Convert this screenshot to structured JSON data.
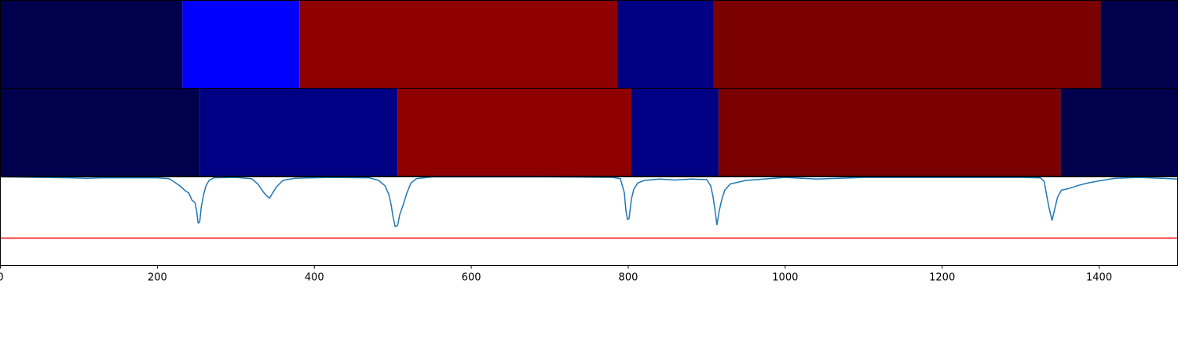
{
  "chart_data": {
    "type": "heatmap",
    "title": "",
    "xlabel": "",
    "ylabel": "",
    "xlim": [
      0,
      1500
    ],
    "grid": false,
    "legend": "none",
    "bands": [
      {
        "name": "",
        "segments": [
          {
            "x0": 0,
            "x1": 232,
            "color": "#00004d"
          },
          {
            "x0": 232,
            "x1": 381,
            "color": "#0000ff"
          },
          {
            "x0": 381,
            "x1": 786,
            "color": "#8f0000"
          },
          {
            "x0": 786,
            "x1": 909,
            "color": "#000083"
          },
          {
            "x0": 909,
            "x1": 1402,
            "color": "#7b0000"
          },
          {
            "x0": 1402,
            "x1": 1500,
            "color": "#00004d"
          }
        ]
      },
      {
        "name": "",
        "segments": [
          {
            "x0": 0,
            "x1": 254,
            "color": "#00004d"
          },
          {
            "x0": 254,
            "x1": 506,
            "color": "#000085"
          },
          {
            "x0": 506,
            "x1": 804,
            "color": "#8f0000"
          },
          {
            "x0": 804,
            "x1": 915,
            "color": "#000085"
          },
          {
            "x0": 915,
            "x1": 1351,
            "color": "#7b0000"
          },
          {
            "x0": 1351,
            "x1": 1500,
            "color": "#00004d"
          }
        ]
      }
    ],
    "line_panel": {
      "ylim": [
        0,
        1
      ],
      "series": [
        {
          "name": "",
          "color": "#1f77b4",
          "points": [
            [
              0,
              1.0
            ],
            [
              90,
              0.99
            ],
            [
              110,
              0.985
            ],
            [
              130,
              0.99
            ],
            [
              200,
              0.99
            ],
            [
              215,
              0.98
            ],
            [
              222,
              0.94
            ],
            [
              230,
              0.89
            ],
            [
              236,
              0.84
            ],
            [
              240,
              0.82
            ],
            [
              244,
              0.74
            ],
            [
              248,
              0.71
            ],
            [
              250,
              0.62
            ],
            [
              252,
              0.48
            ],
            [
              254,
              0.49
            ],
            [
              256,
              0.66
            ],
            [
              259,
              0.8
            ],
            [
              262,
              0.9
            ],
            [
              266,
              0.96
            ],
            [
              272,
              0.99
            ],
            [
              300,
              0.995
            ],
            [
              320,
              0.98
            ],
            [
              328,
              0.92
            ],
            [
              335,
              0.83
            ],
            [
              340,
              0.78
            ],
            [
              343,
              0.76
            ],
            [
              347,
              0.82
            ],
            [
              352,
              0.89
            ],
            [
              360,
              0.96
            ],
            [
              375,
              0.985
            ],
            [
              420,
              0.995
            ],
            [
              470,
              0.99
            ],
            [
              482,
              0.96
            ],
            [
              490,
              0.9
            ],
            [
              495,
              0.8
            ],
            [
              498,
              0.68
            ],
            [
              500,
              0.56
            ],
            [
              503,
              0.44
            ],
            [
              506,
              0.45
            ],
            [
              509,
              0.58
            ],
            [
              513,
              0.68
            ],
            [
              518,
              0.82
            ],
            [
              523,
              0.93
            ],
            [
              530,
              0.98
            ],
            [
              550,
              1.0
            ],
            [
              700,
              1.0
            ],
            [
              780,
              0.995
            ],
            [
              790,
              0.98
            ],
            [
              795,
              0.82
            ],
            [
              797,
              0.62
            ],
            [
              799,
              0.52
            ],
            [
              801,
              0.53
            ],
            [
              804,
              0.75
            ],
            [
              807,
              0.86
            ],
            [
              812,
              0.93
            ],
            [
              820,
              0.96
            ],
            [
              840,
              0.975
            ],
            [
              860,
              0.965
            ],
            [
              880,
              0.975
            ],
            [
              900,
              0.97
            ],
            [
              905,
              0.9
            ],
            [
              908,
              0.78
            ],
            [
              910,
              0.66
            ],
            [
              913,
              0.46
            ],
            [
              916,
              0.62
            ],
            [
              919,
              0.74
            ],
            [
              923,
              0.85
            ],
            [
              930,
              0.92
            ],
            [
              950,
              0.96
            ],
            [
              1000,
              0.995
            ],
            [
              1040,
              0.975
            ],
            [
              1100,
              0.995
            ],
            [
              1300,
              0.995
            ],
            [
              1325,
              0.99
            ],
            [
              1330,
              0.95
            ],
            [
              1333,
              0.8
            ],
            [
              1336,
              0.66
            ],
            [
              1340,
              0.51
            ],
            [
              1343,
              0.62
            ],
            [
              1347,
              0.77
            ],
            [
              1352,
              0.85
            ],
            [
              1362,
              0.87
            ],
            [
              1372,
              0.9
            ],
            [
              1385,
              0.93
            ],
            [
              1400,
              0.955
            ],
            [
              1420,
              0.985
            ],
            [
              1450,
              0.995
            ],
            [
              1480,
              0.985
            ],
            [
              1500,
              0.975
            ]
          ]
        },
        {
          "name": "",
          "color": "#ff0000",
          "points": [
            [
              0,
              0.31
            ],
            [
              1500,
              0.31
            ]
          ]
        }
      ]
    },
    "x_ticks": [
      0,
      200,
      400,
      600,
      800,
      1000,
      1200,
      1400
    ],
    "x_tick_labels": [
      "0",
      "200",
      "400",
      "600",
      "800",
      "1000",
      "1200",
      "1400"
    ]
  }
}
